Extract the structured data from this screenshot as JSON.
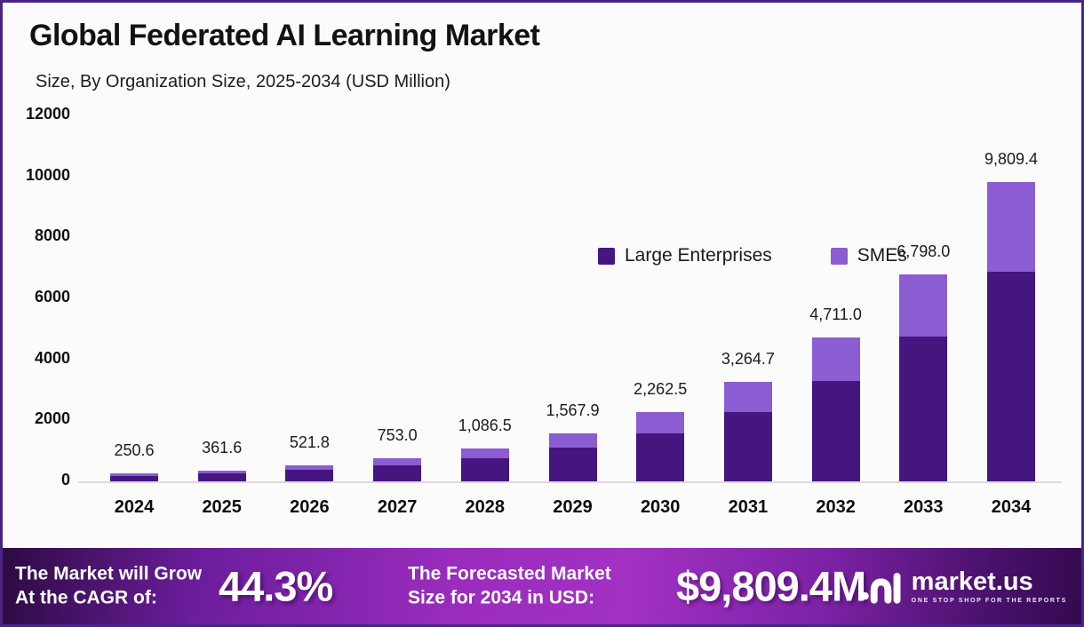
{
  "page": {
    "title": "Global Federated AI Learning Market",
    "subtitle": "Size, By Organization Size, 2025-2034 (USD Million)"
  },
  "chart_data": {
    "type": "bar",
    "stacked": true,
    "title": "Global Federated AI Learning Market",
    "subtitle": "Size, By Organization Size, 2025-2034 (USD Million)",
    "unit": "USD Million",
    "categories": [
      "2024",
      "2025",
      "2026",
      "2027",
      "2028",
      "2029",
      "2030",
      "2031",
      "2032",
      "2033",
      "2034"
    ],
    "totals": [
      250.6,
      361.6,
      521.8,
      753.0,
      1086.5,
      1567.9,
      2262.5,
      3264.7,
      4711.0,
      6798.0,
      9809.4
    ],
    "total_labels": [
      "250.6",
      "361.6",
      "521.8",
      "753.0",
      "1,086.5",
      "1,567.9",
      "2,262.5",
      "3,264.7",
      "4,711.0",
      "6,798.0",
      "9,809.4"
    ],
    "series": [
      {
        "name": "Large Enterprises",
        "color": "#451580",
        "values": [
          175.4,
          253.1,
          365.3,
          527.1,
          760.6,
          1097.5,
          1583.8,
          2285.3,
          3297.7,
          4758.6,
          6866.6
        ]
      },
      {
        "name": "SMEs",
        "color": "#8c5cd2",
        "values": [
          75.2,
          108.5,
          156.5,
          225.9,
          325.9,
          470.4,
          678.7,
          979.4,
          1413.3,
          2039.4,
          2942.8
        ]
      }
    ],
    "ylim": [
      0,
      12000
    ],
    "yticks": [
      0,
      2000,
      4000,
      6000,
      8000,
      10000,
      12000
    ],
    "ytick_labels": [
      "0",
      "2000",
      "4000",
      "6000",
      "8000",
      "10000",
      "12000"
    ],
    "legend_position": "top-center",
    "grid": false
  },
  "banner": {
    "cagr_label_line1": "The Market will Grow",
    "cagr_label_line2": "At the CAGR of:",
    "cagr_value": "44.3%",
    "forecast_label_line1": "The Forecasted Market",
    "forecast_label_line2": "Size for 2034 in USD:",
    "forecast_value": "$9,809.4M",
    "logo_text": "market.us",
    "logo_tagline": "ONE STOP SHOP FOR THE REPORTS"
  },
  "colors": {
    "large_enterprises": "#451580",
    "smes": "#8c5cd2",
    "page_border": "#4b2584",
    "banner_center": "#9c2dbd",
    "banner_edge": "#2d0b43",
    "axis_line": "#dcdcdc"
  }
}
